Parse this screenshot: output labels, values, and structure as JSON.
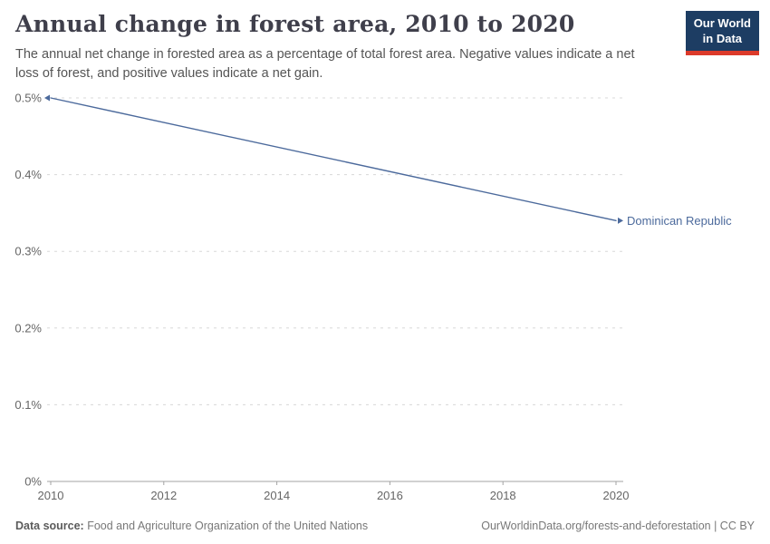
{
  "header": {
    "title": "Annual change in forest area, 2010 to 2020",
    "subtitle": "The annual net change in forested area as a percentage of total forest area. Negative values indicate a net loss of forest, and positive values indicate a net gain."
  },
  "logo": {
    "line1": "Our World",
    "line2": "in Data",
    "bg_color": "#1d3d63",
    "accent_color": "#dc3a2a"
  },
  "chart_data": {
    "type": "line",
    "title": "Annual change in forest area, 2010 to 2020",
    "xlabel": "",
    "ylabel": "",
    "xlim": [
      2010,
      2020
    ],
    "ylim": [
      0,
      0.5
    ],
    "grid": "horizontal-dashed",
    "legend_position": "end-of-line-label",
    "unit": "%",
    "x_ticks": [
      {
        "value": 2010,
        "label": "2010"
      },
      {
        "value": 2012,
        "label": "2012"
      },
      {
        "value": 2014,
        "label": "2014"
      },
      {
        "value": 2016,
        "label": "2016"
      },
      {
        "value": 2018,
        "label": "2018"
      },
      {
        "value": 2020,
        "label": "2020"
      }
    ],
    "y_ticks": [
      {
        "value": 0,
        "label": "0%"
      },
      {
        "value": 0.1,
        "label": "0.1%"
      },
      {
        "value": 0.2,
        "label": "0.2%"
      },
      {
        "value": 0.3,
        "label": "0.3%"
      },
      {
        "value": 0.4,
        "label": "0.4%"
      },
      {
        "value": 0.5,
        "label": "0.5%"
      }
    ],
    "series": [
      {
        "name": "Dominican Republic",
        "color": "#4c6a9c",
        "x": [
          2010,
          2020
        ],
        "values": [
          0.5,
          0.34
        ]
      }
    ]
  },
  "colors": {
    "grid": "#d8d8d8",
    "zero_axis": "#a3a3a3",
    "tick_text": "#666666"
  },
  "footer": {
    "datasource_label": "Data source:",
    "datasource": "Food and Agriculture Organization of the United Nations",
    "link": "OurWorldinData.org/forests-and-deforestation | CC BY"
  }
}
